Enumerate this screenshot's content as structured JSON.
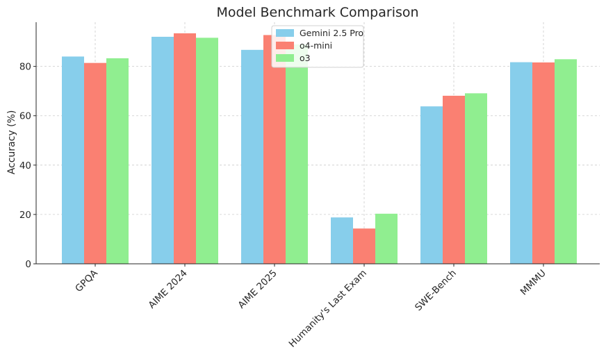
{
  "chart_data": {
    "type": "bar",
    "title": "Model Benchmark Comparison",
    "xlabel": "",
    "ylabel": "Accuracy (%)",
    "categories": [
      "GPQA",
      "AIME 2024",
      "AIME 2025",
      "Humanity's Last Exam",
      "SWE-Bench",
      "MMMU"
    ],
    "series": [
      {
        "name": "Gemini 2.5 Pro",
        "color": "#87ceeb",
        "values": [
          84.0,
          92.0,
          86.7,
          18.8,
          63.8,
          81.7
        ]
      },
      {
        "name": "o4-mini",
        "color": "#fa8072",
        "values": [
          81.4,
          93.4,
          92.7,
          14.3,
          68.1,
          81.6
        ]
      },
      {
        "name": "o3",
        "color": "#90ee90",
        "values": [
          83.3,
          91.6,
          88.9,
          20.3,
          69.1,
          82.9
        ]
      }
    ],
    "ylim": [
      0,
      97.9
    ],
    "yticks": [
      "0",
      "20",
      "40",
      "60",
      "80"
    ],
    "grid": true,
    "legend_position": "top-center"
  }
}
